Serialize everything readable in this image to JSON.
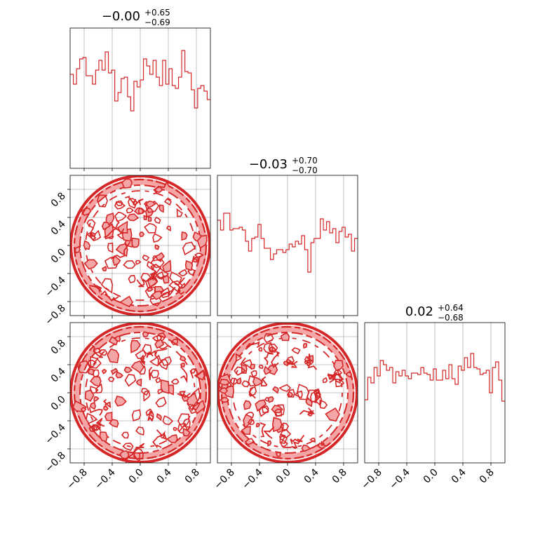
{
  "chart_data": {
    "type": "corner",
    "color": "#d62728",
    "fill_color": "#f4a6a7",
    "grid": true,
    "axis_range": [
      -1,
      1
    ],
    "tick_labels": [
      "−0.8",
      "−0.4",
      "0.0",
      "0.4",
      "0.8"
    ],
    "tick_values": [
      -0.8,
      -0.4,
      0.0,
      0.4,
      0.8
    ],
    "parameters": [
      {
        "median": "−0.00",
        "plus": "+0.65",
        "minus": "−0.69"
      },
      {
        "median": "−0.03",
        "plus": "+0.70",
        "minus": "−0.70"
      },
      {
        "median": "0.02",
        "plus": "+0.64",
        "minus": "−0.68"
      }
    ],
    "histograms": [
      {
        "bin_edges_min": -1,
        "bin_edges_max": 1,
        "values": [
          0.67,
          0.6,
          0.71,
          0.78,
          0.79,
          0.66,
          0.66,
          0.6,
          0.7,
          0.77,
          0.7,
          0.83,
          0.68,
          0.7,
          0.48,
          0.54,
          0.64,
          0.65,
          0.51,
          0.41,
          0.62,
          0.58,
          0.63,
          0.78,
          0.73,
          0.67,
          0.77,
          0.65,
          0.59,
          0.77,
          0.6,
          0.71,
          0.59,
          0.57,
          0.65,
          0.84,
          0.69,
          0.68,
          0.56,
          0.43,
          0.57,
          0.59,
          0.55,
          0.49
        ]
      },
      {
        "bin_edges_min": -1,
        "bin_edges_max": 1,
        "values": [
          0.68,
          0.61,
          0.73,
          0.73,
          0.61,
          0.62,
          0.62,
          0.63,
          0.61,
          0.53,
          0.46,
          0.55,
          0.56,
          0.65,
          0.55,
          0.48,
          0.48,
          0.4,
          0.44,
          0.47,
          0.47,
          0.45,
          0.47,
          0.51,
          0.49,
          0.53,
          0.51,
          0.57,
          0.47,
          0.31,
          0.52,
          0.55,
          0.55,
          0.69,
          0.61,
          0.67,
          0.59,
          0.62,
          0.52,
          0.6,
          0.63,
          0.56,
          0.58,
          0.46,
          0.55
        ]
      },
      {
        "bin_edges_min": -1,
        "bin_edges_max": 1,
        "values": [
          0.45,
          0.61,
          0.57,
          0.68,
          0.62,
          0.73,
          0.7,
          0.66,
          0.68,
          0.57,
          0.65,
          0.62,
          0.66,
          0.62,
          0.6,
          0.64,
          0.64,
          0.63,
          0.68,
          0.64,
          0.63,
          0.59,
          0.67,
          0.59,
          0.59,
          0.66,
          0.6,
          0.7,
          0.6,
          0.56,
          0.69,
          0.66,
          0.75,
          0.68,
          0.78,
          0.68,
          0.67,
          0.63,
          0.64,
          0.66,
          0.5,
          0.68,
          0.72,
          0.59,
          0.44
        ]
      }
    ],
    "contour_pairs": [
      {
        "x_param": 0,
        "y_param": 1,
        "support": "unit-disk"
      },
      {
        "x_param": 0,
        "y_param": 2,
        "support": "unit-disk"
      },
      {
        "x_param": 1,
        "y_param": 2,
        "support": "unit-disk"
      }
    ]
  }
}
